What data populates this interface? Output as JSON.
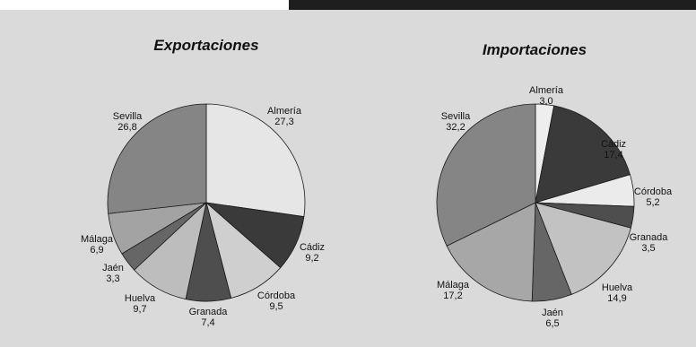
{
  "chart_data": [
    {
      "type": "pie",
      "title": "Exportaciones",
      "categories": [
        "Almería",
        "Cádiz",
        "Córdoba",
        "Granada",
        "Huelva",
        "Jaén",
        "Málaga",
        "Sevilla"
      ],
      "values": [
        27.3,
        9.2,
        9.5,
        7.4,
        9.7,
        3.3,
        6.9,
        26.8
      ],
      "value_labels": [
        "27,3",
        "9,2",
        "9,5",
        "7,4",
        "9,7",
        "3,3",
        "6,9",
        "26,8"
      ],
      "colors": [
        "#e6e6e6",
        "#3a3a3a",
        "#cfcfcf",
        "#4e4e4e",
        "#bdbdbd",
        "#666666",
        "#a3a3a3",
        "#858585"
      ]
    },
    {
      "type": "pie",
      "title": "Importaciones",
      "categories": [
        "Almería",
        "Cádiz",
        "Córdoba",
        "Granada",
        "Huelva",
        "Jaén",
        "Málaga",
        "Sevilla"
      ],
      "values": [
        3.0,
        17.4,
        5.2,
        3.5,
        14.9,
        6.5,
        17.2,
        32.2
      ],
      "value_labels": [
        "3,0",
        "17,4",
        "5,2",
        "3,5",
        "14,9",
        "6,5",
        "17,2",
        "32,2"
      ],
      "colors": [
        "#eeeeee",
        "#3a3a3a",
        "#ebebeb",
        "#4e4e4e",
        "#c2c2c2",
        "#666666",
        "#a7a7a7",
        "#858585"
      ]
    }
  ]
}
